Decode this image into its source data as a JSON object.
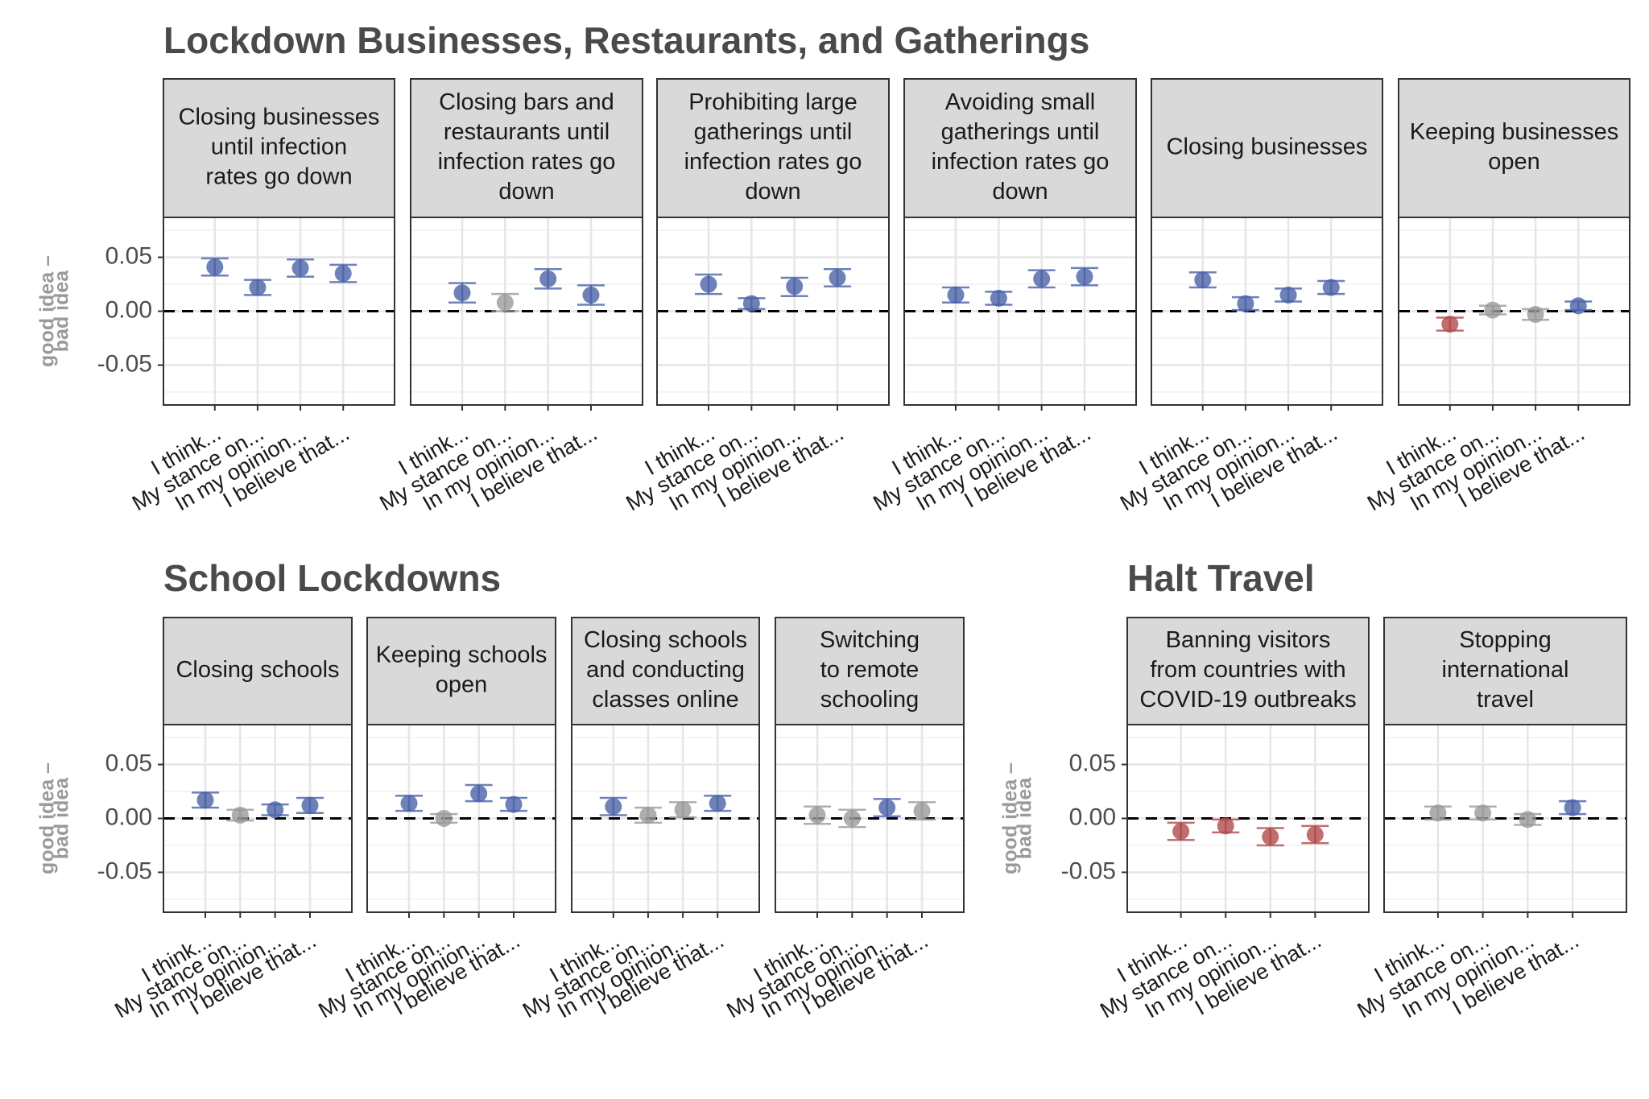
{
  "y_axis_label_lines": [
    "good idea –",
    "bad idea"
  ],
  "colors": {
    "positive": "#4a62a8",
    "neutral": "#9a9a9a",
    "negative": "#b04a4a",
    "strip": "#d9d9d9",
    "title": "#4a4a4a",
    "axis_label": "#9a9a9a"
  },
  "chart_data": [
    {
      "type": "scatter",
      "title": "Lockdown Businesses, Restaurants, and Gatherings",
      "ylabel": "good idea – bad idea",
      "yticks": [
        "0.05",
        "0.00",
        "-0.05"
      ],
      "ylim": [
        -0.087,
        0.087
      ],
      "categories": [
        "I think...",
        "My stance on...",
        "In my opinion...",
        "I believe that..."
      ],
      "facets": [
        {
          "label_lines": [
            "Closing businesses",
            "until infection",
            "rates go down"
          ],
          "points": [
            {
              "y": 0.041,
              "lo": 0.033,
              "hi": 0.049,
              "sig": "positive"
            },
            {
              "y": 0.022,
              "lo": 0.015,
              "hi": 0.029,
              "sig": "positive"
            },
            {
              "y": 0.04,
              "lo": 0.032,
              "hi": 0.048,
              "sig": "positive"
            },
            {
              "y": 0.035,
              "lo": 0.027,
              "hi": 0.043,
              "sig": "positive"
            }
          ]
        },
        {
          "label_lines": [
            "Closing bars and",
            "restaurants until",
            "infection rates go",
            "down"
          ],
          "points": [
            {
              "y": 0.017,
              "lo": 0.008,
              "hi": 0.026,
              "sig": "positive"
            },
            {
              "y": 0.008,
              "lo": 0.0,
              "hi": 0.016,
              "sig": "neutral"
            },
            {
              "y": 0.03,
              "lo": 0.021,
              "hi": 0.039,
              "sig": "positive"
            },
            {
              "y": 0.015,
              "lo": 0.006,
              "hi": 0.024,
              "sig": "positive"
            }
          ]
        },
        {
          "label_lines": [
            "Prohibiting large",
            "gatherings until",
            "infection rates go",
            "down"
          ],
          "points": [
            {
              "y": 0.025,
              "lo": 0.016,
              "hi": 0.034,
              "sig": "positive"
            },
            {
              "y": 0.007,
              "lo": 0.002,
              "hi": 0.012,
              "sig": "positive"
            },
            {
              "y": 0.023,
              "lo": 0.014,
              "hi": 0.031,
              "sig": "positive"
            },
            {
              "y": 0.031,
              "lo": 0.023,
              "hi": 0.039,
              "sig": "positive"
            }
          ]
        },
        {
          "label_lines": [
            "Avoiding small",
            "gatherings until",
            "infection rates go",
            "down"
          ],
          "points": [
            {
              "y": 0.015,
              "lo": 0.008,
              "hi": 0.022,
              "sig": "positive"
            },
            {
              "y": 0.012,
              "lo": 0.006,
              "hi": 0.018,
              "sig": "positive"
            },
            {
              "y": 0.03,
              "lo": 0.022,
              "hi": 0.038,
              "sig": "positive"
            },
            {
              "y": 0.032,
              "lo": 0.024,
              "hi": 0.04,
              "sig": "positive"
            }
          ]
        },
        {
          "label_lines": [
            "Closing businesses"
          ],
          "points": [
            {
              "y": 0.029,
              "lo": 0.022,
              "hi": 0.036,
              "sig": "positive"
            },
            {
              "y": 0.007,
              "lo": 0.001,
              "hi": 0.013,
              "sig": "positive"
            },
            {
              "y": 0.015,
              "lo": 0.009,
              "hi": 0.021,
              "sig": "positive"
            },
            {
              "y": 0.022,
              "lo": 0.016,
              "hi": 0.028,
              "sig": "positive"
            }
          ]
        },
        {
          "label_lines": [
            "Keeping businesses",
            "open"
          ],
          "points": [
            {
              "y": -0.012,
              "lo": -0.018,
              "hi": -0.006,
              "sig": "negative"
            },
            {
              "y": 0.001,
              "lo": -0.003,
              "hi": 0.005,
              "sig": "neutral"
            },
            {
              "y": -0.003,
              "lo": -0.008,
              "hi": 0.002,
              "sig": "neutral"
            },
            {
              "y": 0.005,
              "lo": 0.001,
              "hi": 0.009,
              "sig": "positive"
            }
          ]
        }
      ]
    },
    {
      "type": "scatter",
      "title": "School Lockdowns",
      "ylabel": "good idea – bad idea",
      "yticks": [
        "0.05",
        "0.00",
        "-0.05"
      ],
      "ylim": [
        -0.087,
        0.087
      ],
      "categories": [
        "I think...",
        "My stance on...",
        "In my opinion...",
        "I believe that..."
      ],
      "facets": [
        {
          "label_lines": [
            "Closing schools"
          ],
          "points": [
            {
              "y": 0.017,
              "lo": 0.01,
              "hi": 0.024,
              "sig": "positive"
            },
            {
              "y": 0.003,
              "lo": -0.002,
              "hi": 0.008,
              "sig": "neutral"
            },
            {
              "y": 0.008,
              "lo": 0.003,
              "hi": 0.013,
              "sig": "positive"
            },
            {
              "y": 0.012,
              "lo": 0.005,
              "hi": 0.019,
              "sig": "positive"
            }
          ]
        },
        {
          "label_lines": [
            "Keeping schools",
            "open"
          ],
          "points": [
            {
              "y": 0.014,
              "lo": 0.007,
              "hi": 0.021,
              "sig": "positive"
            },
            {
              "y": 0.0,
              "lo": -0.004,
              "hi": 0.004,
              "sig": "neutral"
            },
            {
              "y": 0.023,
              "lo": 0.016,
              "hi": 0.031,
              "sig": "positive"
            },
            {
              "y": 0.013,
              "lo": 0.007,
              "hi": 0.019,
              "sig": "positive"
            }
          ]
        },
        {
          "label_lines": [
            "Closing schools",
            "and conducting",
            "classes online"
          ],
          "points": [
            {
              "y": 0.011,
              "lo": 0.003,
              "hi": 0.019,
              "sig": "positive"
            },
            {
              "y": 0.003,
              "lo": -0.004,
              "hi": 0.01,
              "sig": "neutral"
            },
            {
              "y": 0.008,
              "lo": 0.001,
              "hi": 0.015,
              "sig": "neutral"
            },
            {
              "y": 0.014,
              "lo": 0.007,
              "hi": 0.021,
              "sig": "positive"
            }
          ]
        },
        {
          "label_lines": [
            "Switching",
            "to remote",
            "schooling"
          ],
          "points": [
            {
              "y": 0.003,
              "lo": -0.005,
              "hi": 0.011,
              "sig": "neutral"
            },
            {
              "y": 0.0,
              "lo": -0.008,
              "hi": 0.008,
              "sig": "neutral"
            },
            {
              "y": 0.01,
              "lo": 0.002,
              "hi": 0.018,
              "sig": "positive"
            },
            {
              "y": 0.007,
              "lo": -0.001,
              "hi": 0.015,
              "sig": "neutral"
            }
          ]
        }
      ]
    },
    {
      "type": "scatter",
      "title": "Halt Travel",
      "ylabel": "good idea – bad idea",
      "yticks": [
        "0.05",
        "0.00",
        "-0.05"
      ],
      "ylim": [
        -0.087,
        0.087
      ],
      "categories": [
        "I think...",
        "My stance on...",
        "In my opinion...",
        "I believe that..."
      ],
      "facets": [
        {
          "label_lines": [
            "Banning visitors",
            "from countries with",
            "COVID-19 outbreaks"
          ],
          "points": [
            {
              "y": -0.012,
              "lo": -0.02,
              "hi": -0.004,
              "sig": "negative"
            },
            {
              "y": -0.007,
              "lo": -0.013,
              "hi": -0.001,
              "sig": "negative"
            },
            {
              "y": -0.017,
              "lo": -0.025,
              "hi": -0.009,
              "sig": "negative"
            },
            {
              "y": -0.015,
              "lo": -0.023,
              "hi": -0.007,
              "sig": "negative"
            }
          ]
        },
        {
          "label_lines": [
            "Stopping",
            "international",
            "travel"
          ],
          "points": [
            {
              "y": 0.005,
              "lo": -0.001,
              "hi": 0.011,
              "sig": "neutral"
            },
            {
              "y": 0.005,
              "lo": -0.001,
              "hi": 0.011,
              "sig": "neutral"
            },
            {
              "y": -0.001,
              "lo": -0.006,
              "hi": 0.004,
              "sig": "neutral"
            },
            {
              "y": 0.01,
              "lo": 0.004,
              "hi": 0.016,
              "sig": "positive"
            }
          ]
        }
      ]
    }
  ]
}
